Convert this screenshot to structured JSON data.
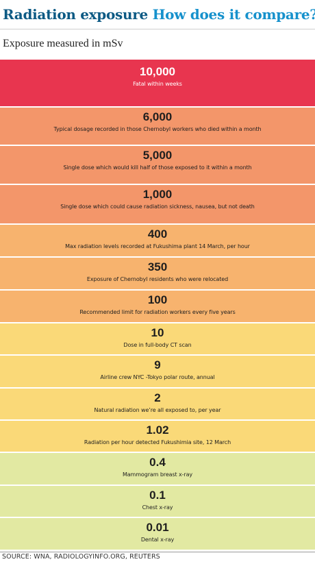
{
  "header": {
    "title_part1": "Radiation exposure",
    "title_part2": "How does it compare?",
    "subtitle": "Exposure measured in mSv"
  },
  "chart_data": {
    "type": "table",
    "unit": "mSv",
    "rows": [
      {
        "value": "10,000",
        "description": "Fatal within weeks",
        "color": "#e8354f"
      },
      {
        "value": "6,000",
        "description": "Typical dosage recorded in those Chernobyl workers who died within a month",
        "color": "#f3966a"
      },
      {
        "value": "5,000",
        "description": "Single dose which would kill half of those exposed to it within a month",
        "color": "#f3966a"
      },
      {
        "value": "1,000",
        "description": "Single dose which could cause radiation sickness, nausea, but not death",
        "color": "#f3966a"
      },
      {
        "value": "400",
        "description": "Max radiation levels recorded at Fukushima plant 14 March, per hour",
        "color": "#f7b36e"
      },
      {
        "value": "350",
        "description": "Exposure of Chernobyl residents who were relocated",
        "color": "#f7b36e"
      },
      {
        "value": "100",
        "description": "Recommended limit for radiation workers every five years",
        "color": "#f7b36e"
      },
      {
        "value": "10",
        "description": "Dose in full-body CT scan",
        "color": "#fad978"
      },
      {
        "value": "9",
        "description": "Airline crew NYC -Tokyo polar route, annual",
        "color": "#fad978"
      },
      {
        "value": "2",
        "description": "Natural radiation we’re all exposed to, per year",
        "color": "#fad978"
      },
      {
        "value": "1.02",
        "description": "Radiation per hour detected Fukushimia site, 12 March",
        "color": "#fad978"
      },
      {
        "value": "0.4",
        "description": "Mammogram breast x-ray",
        "color": "#e2e9a2"
      },
      {
        "value": "0.1",
        "description": "Chest x-ray",
        "color": "#e2e9a2"
      },
      {
        "value": "0.01",
        "description": "Dental x-ray",
        "color": "#e2e9a2"
      }
    ]
  },
  "source": "SOURCE: WNA, RADIOLOGYINFO.ORG, REUTERS"
}
